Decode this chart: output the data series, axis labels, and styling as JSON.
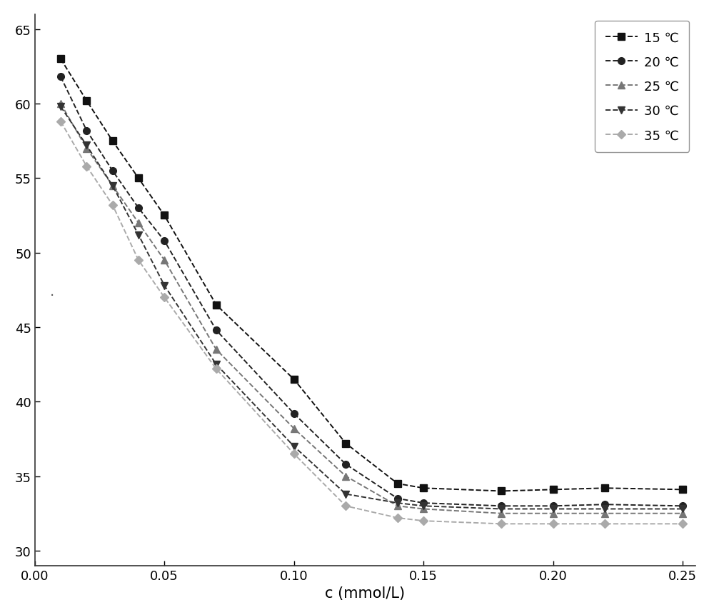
{
  "xlabel": "c (mmol/L)",
  "xlim": [
    0.0,
    0.255
  ],
  "ylim": [
    29,
    66
  ],
  "yticks": [
    30,
    35,
    40,
    45,
    50,
    55,
    60,
    65
  ],
  "xticks": [
    0.0,
    0.05,
    0.1,
    0.15,
    0.2,
    0.25
  ],
  "series": [
    {
      "label": "15 ℃",
      "color": "#111111",
      "marker": "s",
      "linestyle": "--",
      "markersize": 7,
      "x": [
        0.01,
        0.02,
        0.03,
        0.04,
        0.05,
        0.07,
        0.1,
        0.12,
        0.14,
        0.15,
        0.18,
        0.2,
        0.22,
        0.25
      ],
      "y": [
        63.0,
        60.2,
        57.5,
        55.0,
        52.5,
        46.5,
        41.5,
        37.2,
        34.5,
        34.2,
        34.0,
        34.1,
        34.2,
        34.1
      ]
    },
    {
      "label": "20 ℃",
      "color": "#222222",
      "marker": "o",
      "linestyle": "--",
      "markersize": 7,
      "x": [
        0.01,
        0.02,
        0.03,
        0.04,
        0.05,
        0.07,
        0.1,
        0.12,
        0.14,
        0.15,
        0.18,
        0.2,
        0.22,
        0.25
      ],
      "y": [
        61.8,
        58.2,
        55.5,
        53.0,
        50.8,
        44.8,
        39.2,
        35.8,
        33.5,
        33.2,
        33.0,
        33.0,
        33.1,
        33.0
      ]
    },
    {
      "label": "25 ℃",
      "color": "#777777",
      "marker": "^",
      "linestyle": "--",
      "markersize": 7,
      "x": [
        0.01,
        0.02,
        0.03,
        0.04,
        0.05,
        0.07,
        0.1,
        0.12,
        0.14,
        0.15,
        0.18,
        0.2,
        0.22,
        0.25
      ],
      "y": [
        60.0,
        57.0,
        54.5,
        52.0,
        49.5,
        43.5,
        38.2,
        35.0,
        33.0,
        32.8,
        32.5,
        32.5,
        32.5,
        32.5
      ]
    },
    {
      "label": "30 ℃",
      "color": "#333333",
      "marker": "v",
      "linestyle": "--",
      "markersize": 7,
      "x": [
        0.01,
        0.02,
        0.03,
        0.04,
        0.05,
        0.07,
        0.1,
        0.12,
        0.14,
        0.15,
        0.18,
        0.2,
        0.22,
        0.25
      ],
      "y": [
        59.8,
        57.2,
        54.5,
        51.2,
        47.8,
        42.5,
        37.0,
        33.8,
        33.2,
        33.0,
        32.8,
        32.8,
        32.8,
        32.8
      ]
    },
    {
      "label": "35 ℃",
      "color": "#aaaaaa",
      "marker": "D",
      "linestyle": "--",
      "markersize": 6,
      "x": [
        0.01,
        0.02,
        0.03,
        0.04,
        0.05,
        0.07,
        0.1,
        0.12,
        0.14,
        0.15,
        0.18,
        0.2,
        0.22,
        0.25
      ],
      "y": [
        58.8,
        55.8,
        53.2,
        49.5,
        47.0,
        42.2,
        36.5,
        33.0,
        32.2,
        32.0,
        31.8,
        31.8,
        31.8,
        31.8
      ]
    }
  ],
  "legend_loc": "upper right",
  "background_color": "#ffffff",
  "figure_color": "#ffffff"
}
